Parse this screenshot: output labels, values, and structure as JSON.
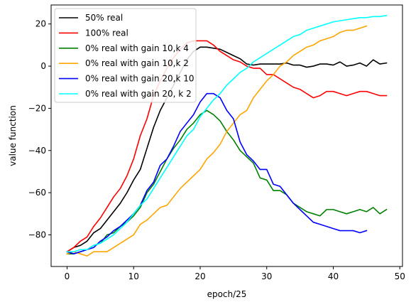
{
  "chart_data": {
    "type": "line",
    "xlabel": "epoch/25",
    "ylabel": "value function",
    "xlim": [
      -2.4,
      50.4
    ],
    "ylim": [
      -95,
      29
    ],
    "xticks": [
      0,
      10,
      20,
      30,
      40,
      50
    ],
    "yticks": [
      -80,
      -60,
      -40,
      -20,
      0,
      20
    ],
    "grid": false,
    "legend_position": "top-left",
    "series": [
      {
        "name": "50% real",
        "color": "#000000",
        "x": [
          0,
          1,
          2,
          3,
          4,
          5,
          6,
          7,
          8,
          9,
          10,
          11,
          12,
          13,
          14,
          15,
          16,
          17,
          18,
          19,
          20,
          21,
          22,
          23,
          24,
          25,
          26,
          27,
          28,
          29,
          30,
          31,
          32,
          33,
          34,
          35,
          36,
          37,
          38,
          39,
          40,
          41,
          42,
          43,
          44,
          45,
          46,
          47,
          48
        ],
        "y": [
          -88,
          -86,
          -85,
          -83,
          -79,
          -77,
          -73,
          -69,
          -65,
          -60,
          -54,
          -49,
          -39,
          -29,
          -21,
          -15,
          -9,
          -3,
          3,
          7,
          9,
          9,
          8.5,
          8,
          6.5,
          5,
          3.5,
          1,
          0.5,
          1,
          1,
          1,
          1,
          1.5,
          0.5,
          0.5,
          -0.5,
          0,
          1,
          1,
          0.5,
          2,
          0,
          0.5,
          1.5,
          0,
          3,
          1,
          1.5
        ]
      },
      {
        "name": "100% real",
        "color": "#ff0000",
        "x": [
          0,
          1,
          2,
          3,
          4,
          5,
          6,
          7,
          8,
          9,
          10,
          11,
          12,
          13,
          14,
          15,
          16,
          17,
          18,
          19,
          20,
          21,
          22,
          23,
          24,
          25,
          26,
          27,
          28,
          29,
          30,
          31,
          32,
          33,
          34,
          35,
          36,
          37,
          38,
          39,
          40,
          41,
          42,
          43,
          44,
          45,
          46,
          47,
          48
        ],
        "y": [
          -88,
          -86,
          -83,
          -81,
          -76,
          -72,
          -67,
          -62,
          -58,
          -52,
          -44,
          -33,
          -25,
          -14,
          -7,
          -1,
          4,
          8,
          11,
          12,
          12,
          12,
          10,
          7,
          5,
          3,
          2,
          0,
          -1,
          -1,
          -4,
          -4,
          -6,
          -8,
          -10,
          -11,
          -13,
          -15,
          -14,
          -12,
          -12,
          -13,
          -14,
          -13,
          -12,
          -12,
          -13,
          -14,
          -14
        ]
      },
      {
        "name": "0% real with gain 10,k 4",
        "color": "#008000",
        "x": [
          0,
          1,
          2,
          3,
          4,
          5,
          6,
          7,
          8,
          9,
          10,
          11,
          12,
          13,
          14,
          15,
          16,
          17,
          18,
          19,
          20,
          21,
          22,
          23,
          24,
          25,
          26,
          27,
          28,
          29,
          30,
          31,
          32,
          33,
          34,
          35,
          36,
          37,
          38,
          39,
          40,
          41,
          42,
          43,
          44,
          45,
          46,
          47,
          48
        ],
        "y": [
          -89,
          -89,
          -88,
          -87,
          -85,
          -84,
          -80,
          -79,
          -76,
          -74,
          -71,
          -67,
          -60,
          -56,
          -50,
          -44,
          -39,
          -35,
          -30,
          -27,
          -23,
          -21,
          -23,
          -26,
          -31,
          -35,
          -40,
          -43,
          -46,
          -53,
          -54,
          -59,
          -59,
          -61,
          -65,
          -67,
          -69,
          -70,
          -71,
          -68,
          -68,
          -69,
          -70,
          -69,
          -68,
          -69,
          -67,
          -70,
          -68
        ]
      },
      {
        "name": "0% real with gain 10,k 2",
        "color": "#ffa500",
        "x": [
          0,
          1,
          2,
          3,
          4,
          5,
          6,
          7,
          8,
          9,
          10,
          11,
          12,
          13,
          14,
          15,
          16,
          17,
          18,
          19,
          20,
          21,
          22,
          23,
          24,
          25,
          26,
          27,
          28,
          29,
          30,
          31,
          32,
          33,
          34,
          35,
          36,
          37,
          38,
          39,
          40,
          41,
          42,
          43,
          44,
          45
        ],
        "y": [
          -89,
          -88,
          -89,
          -90,
          -88,
          -88,
          -88,
          -86,
          -84,
          -82,
          -80,
          -75,
          -73,
          -70,
          -67,
          -66,
          -62,
          -58,
          -55,
          -52,
          -49,
          -44,
          -41,
          -37,
          -31,
          -27,
          -23,
          -21,
          -15,
          -11,
          -7,
          -4,
          0,
          2,
          5,
          7,
          9,
          10,
          12,
          13,
          14,
          16,
          17,
          17,
          18,
          19
        ]
      },
      {
        "name": "0% real with gain 20,k 10",
        "color": "#0000ff",
        "x": [
          0,
          1,
          2,
          3,
          4,
          5,
          6,
          7,
          8,
          9,
          10,
          11,
          12,
          13,
          14,
          15,
          16,
          17,
          18,
          19,
          20,
          21,
          22,
          23,
          24,
          25,
          26,
          27,
          28,
          29,
          30,
          31,
          32,
          33,
          34,
          35,
          36,
          37,
          38,
          39,
          40,
          41,
          42,
          43,
          44,
          45
        ],
        "y": [
          -88,
          -89,
          -88,
          -87,
          -86,
          -83,
          -81,
          -78,
          -76,
          -73,
          -70,
          -66,
          -59,
          -55,
          -47,
          -44,
          -38,
          -31,
          -27,
          -23,
          -17,
          -13,
          -13,
          -15,
          -21,
          -25,
          -36,
          -42,
          -45,
          -49,
          -49,
          -56,
          -57,
          -61,
          -65,
          -68,
          -71,
          -74,
          -75,
          -76,
          -77,
          -78,
          -78,
          -78,
          -79,
          -78
        ]
      },
      {
        "name": "0% real with gain 20, k 2",
        "color": "#00ffff",
        "x": [
          0,
          1,
          2,
          3,
          4,
          5,
          6,
          7,
          8,
          9,
          10,
          11,
          12,
          13,
          14,
          15,
          16,
          17,
          18,
          19,
          20,
          21,
          22,
          23,
          24,
          25,
          26,
          27,
          28,
          29,
          30,
          31,
          32,
          33,
          34,
          35,
          36,
          37,
          38,
          39,
          40,
          41,
          42,
          43,
          44,
          45,
          46,
          47,
          48
        ],
        "y": [
          -88,
          -88,
          -87,
          -87,
          -85,
          -84,
          -82,
          -80,
          -77,
          -74,
          -70,
          -66,
          -63,
          -58,
          -53,
          -48,
          -43,
          -38,
          -33,
          -30,
          -24,
          -20,
          -16,
          -13,
          -9,
          -6,
          -3,
          -1,
          2,
          4,
          6,
          8,
          10,
          12,
          14,
          15,
          17,
          18,
          19,
          20,
          21,
          21.5,
          22,
          22.5,
          23,
          23,
          23.5,
          23.5,
          24
        ]
      }
    ]
  }
}
